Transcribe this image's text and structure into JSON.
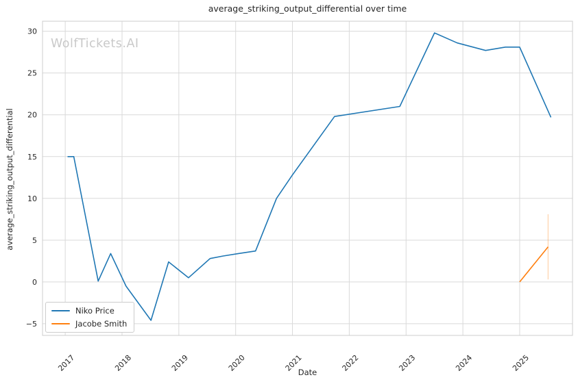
{
  "chart_data": {
    "type": "line",
    "title": "average_striking_output_differential over time",
    "xlabel": "Date",
    "ylabel": "average_striking_output_differential",
    "watermark": "WolfTickets.AI",
    "grid": true,
    "legend_position": "lower left",
    "xlim": [
      2016.6,
      2025.93
    ],
    "ylim": [
      -6.4,
      31.2
    ],
    "xticks": [
      2017,
      2018,
      2019,
      2020,
      2021,
      2022,
      2023,
      2024,
      2025
    ],
    "yticks": [
      -5,
      0,
      5,
      10,
      15,
      20,
      25,
      30
    ],
    "colors": {
      "background": "#ffffff",
      "grid": "#d9d9d9",
      "spine": "#cccccc",
      "text": "#262626",
      "watermark": "#c9c9c9",
      "niko_price": "#1f77b4",
      "jacobe_smith": "#ff7f0e"
    },
    "series": [
      {
        "name": "Niko Price",
        "color": "#1f77b4",
        "x": [
          2017.04,
          2017.15,
          2017.58,
          2017.8,
          2018.07,
          2018.51,
          2018.82,
          2019.17,
          2019.55,
          2019.78,
          2020.05,
          2020.35,
          2020.72,
          2021.0,
          2021.74,
          2022.89,
          2023.5,
          2023.9,
          2024.4,
          2024.75,
          2025.0,
          2025.55
        ],
        "y": [
          15.0,
          15.0,
          0.1,
          3.4,
          -0.5,
          -4.6,
          2.4,
          0.5,
          2.8,
          3.1,
          3.4,
          3.7,
          10.0,
          12.8,
          19.8,
          21.0,
          29.8,
          28.6,
          27.7,
          28.1,
          28.1,
          19.7
        ]
      },
      {
        "name": "Jacobe Smith",
        "color": "#ff7f0e",
        "x": [
          2025.0,
          2025.5
        ],
        "y": [
          0.0,
          4.2
        ],
        "error_bar": {
          "x": 2025.5,
          "y_min": 0.3,
          "y_max": 8.1,
          "opacity": 0.35
        }
      }
    ]
  }
}
